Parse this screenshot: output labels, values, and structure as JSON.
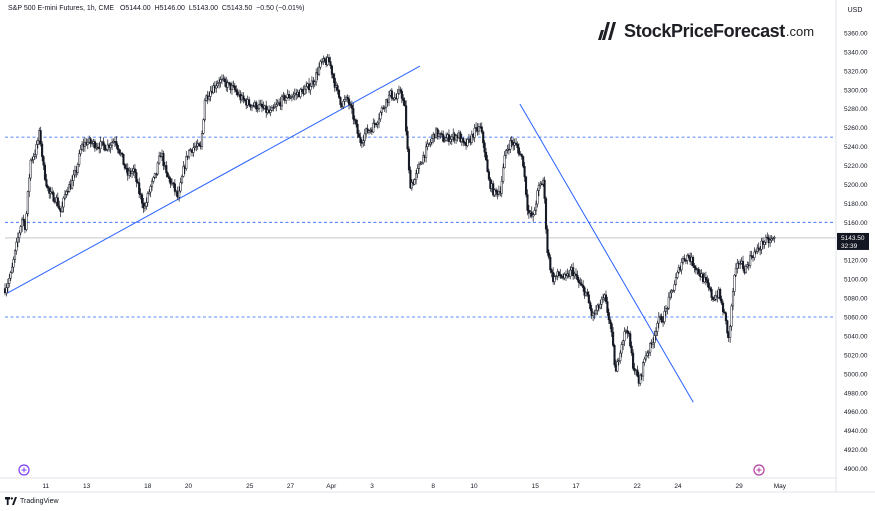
{
  "header": {
    "title": "S&P 500 E-mini Futures, 1h, CME",
    "o": "O5144.00",
    "h": "H5146.00",
    "l": "L5143.00",
    "c": "C5143.50",
    "chg": "−0.50 (−0.01%)"
  },
  "logo": {
    "brand": "StockPriceForecast",
    "tld": ".com"
  },
  "footer": {
    "brand": "TradingView"
  },
  "colors": {
    "candle": "#131722",
    "trend": "#2962ff",
    "level": "#2962ff",
    "price": "#131722"
  },
  "chart_data": {
    "type": "candlestick",
    "currency": "USD",
    "ylim": [
      4890,
      5380
    ],
    "y_ticks": [
      4900,
      4920,
      4940,
      4960,
      4980,
      5000,
      5020,
      5040,
      5060,
      5080,
      5100,
      5120,
      5140,
      5160,
      5180,
      5200,
      5220,
      5240,
      5260,
      5280,
      5300,
      5320,
      5340,
      5360
    ],
    "x_ticks": [
      {
        "label": "11",
        "x": 4
      },
      {
        "label": "13",
        "x": 8
      },
      {
        "label": "18",
        "x": 14
      },
      {
        "label": "20",
        "x": 18
      },
      {
        "label": "25",
        "x": 24
      },
      {
        "label": "27",
        "x": 28
      },
      {
        "label": "Apr",
        "x": 32
      },
      {
        "label": "3",
        "x": 36
      },
      {
        "label": "8",
        "x": 42
      },
      {
        "label": "10",
        "x": 46
      },
      {
        "label": "15",
        "x": 52
      },
      {
        "label": "17",
        "x": 56
      },
      {
        "label": "22",
        "x": 62
      },
      {
        "label": "24",
        "x": 66
      },
      {
        "label": "29",
        "x": 72
      },
      {
        "label": "May",
        "x": 76
      }
    ],
    "xlim": [
      0,
      81.5
    ],
    "price_path": [
      [
        0.0,
        5090
      ],
      [
        0.6,
        5105
      ],
      [
        1.2,
        5140
      ],
      [
        1.7,
        5165
      ],
      [
        2.0,
        5155
      ],
      [
        2.5,
        5225
      ],
      [
        3.0,
        5235
      ],
      [
        3.4,
        5255
      ],
      [
        3.8,
        5215
      ],
      [
        4.3,
        5190
      ],
      [
        5.0,
        5185
      ],
      [
        5.5,
        5170
      ],
      [
        6.0,
        5195
      ],
      [
        6.5,
        5200
      ],
      [
        7.0,
        5215
      ],
      [
        7.5,
        5240
      ],
      [
        8.0,
        5245
      ],
      [
        9.0,
        5242
      ],
      [
        10.0,
        5240
      ],
      [
        10.8,
        5248
      ],
      [
        11.4,
        5230
      ],
      [
        12.0,
        5210
      ],
      [
        12.6,
        5215
      ],
      [
        13.2,
        5190
      ],
      [
        13.7,
        5175
      ],
      [
        14.2,
        5195
      ],
      [
        14.8,
        5210
      ],
      [
        15.3,
        5235
      ],
      [
        15.8,
        5210
      ],
      [
        16.4,
        5200
      ],
      [
        17.0,
        5185
      ],
      [
        17.5,
        5215
      ],
      [
        18.0,
        5235
      ],
      [
        18.6,
        5240
      ],
      [
        19.2,
        5238
      ],
      [
        19.6,
        5290
      ],
      [
        20.2,
        5300
      ],
      [
        21.0,
        5310
      ],
      [
        21.8,
        5305
      ],
      [
        22.5,
        5300
      ],
      [
        23.2,
        5290
      ],
      [
        24.0,
        5285
      ],
      [
        25.0,
        5282
      ],
      [
        26.0,
        5275
      ],
      [
        26.8,
        5285
      ],
      [
        27.5,
        5292
      ],
      [
        28.5,
        5295
      ],
      [
        29.5,
        5300
      ],
      [
        30.3,
        5310
      ],
      [
        31.0,
        5328
      ],
      [
        31.8,
        5330
      ],
      [
        32.5,
        5300
      ],
      [
        33.0,
        5285
      ],
      [
        33.6,
        5290
      ],
      [
        34.2,
        5270
      ],
      [
        34.8,
        5245
      ],
      [
        35.4,
        5255
      ],
      [
        36.0,
        5260
      ],
      [
        36.6,
        5270
      ],
      [
        37.2,
        5285
      ],
      [
        37.8,
        5295
      ],
      [
        38.4,
        5290
      ],
      [
        38.8,
        5300
      ],
      [
        39.2,
        5280
      ],
      [
        39.7,
        5200
      ],
      [
        40.2,
        5205
      ],
      [
        40.8,
        5225
      ],
      [
        41.5,
        5240
      ],
      [
        42.2,
        5255
      ],
      [
        43.0,
        5248
      ],
      [
        43.8,
        5250
      ],
      [
        44.5,
        5252
      ],
      [
        45.0,
        5240
      ],
      [
        45.5,
        5245
      ],
      [
        46.0,
        5255
      ],
      [
        46.6,
        5260
      ],
      [
        47.0,
        5240
      ],
      [
        47.4,
        5205
      ],
      [
        48.0,
        5190
      ],
      [
        48.6,
        5195
      ],
      [
        49.1,
        5235
      ],
      [
        49.6,
        5245
      ],
      [
        50.2,
        5240
      ],
      [
        50.8,
        5225
      ],
      [
        51.3,
        5170
      ],
      [
        51.8,
        5165
      ],
      [
        52.3,
        5195
      ],
      [
        52.8,
        5205
      ],
      [
        53.2,
        5130
      ],
      [
        53.7,
        5100
      ],
      [
        54.3,
        5105
      ],
      [
        55.0,
        5100
      ],
      [
        55.6,
        5110
      ],
      [
        56.3,
        5095
      ],
      [
        57.0,
        5085
      ],
      [
        57.6,
        5060
      ],
      [
        58.2,
        5070
      ],
      [
        58.8,
        5080
      ],
      [
        59.4,
        5050
      ],
      [
        59.9,
        5000
      ],
      [
        60.4,
        5030
      ],
      [
        61.0,
        5050
      ],
      [
        61.6,
        5010
      ],
      [
        62.2,
        4990
      ],
      [
        62.8,
        5020
      ],
      [
        63.4,
        5030
      ],
      [
        64.0,
        5055
      ],
      [
        64.6,
        5060
      ],
      [
        65.2,
        5080
      ],
      [
        65.8,
        5100
      ],
      [
        66.4,
        5120
      ],
      [
        67.0,
        5125
      ],
      [
        67.6,
        5115
      ],
      [
        68.2,
        5105
      ],
      [
        68.8,
        5095
      ],
      [
        69.4,
        5080
      ],
      [
        70.0,
        5085
      ],
      [
        70.6,
        5060
      ],
      [
        71.0,
        5035
      ],
      [
        71.5,
        5100
      ],
      [
        72.0,
        5120
      ],
      [
        72.6,
        5110
      ],
      [
        73.2,
        5125
      ],
      [
        73.8,
        5130
      ],
      [
        74.4,
        5140
      ],
      [
        75.0,
        5140
      ],
      [
        75.6,
        5143.5
      ]
    ],
    "horizontal_levels": [
      5250,
      5160,
      5060
    ],
    "trend_lines": [
      {
        "from": [
          0.2,
          5085
        ],
        "to": [
          40.7,
          5325
        ]
      },
      {
        "from": [
          50.5,
          5285
        ],
        "to": [
          67.5,
          4970
        ]
      }
    ],
    "last_price": "5143.50",
    "countdown": "32:39"
  }
}
